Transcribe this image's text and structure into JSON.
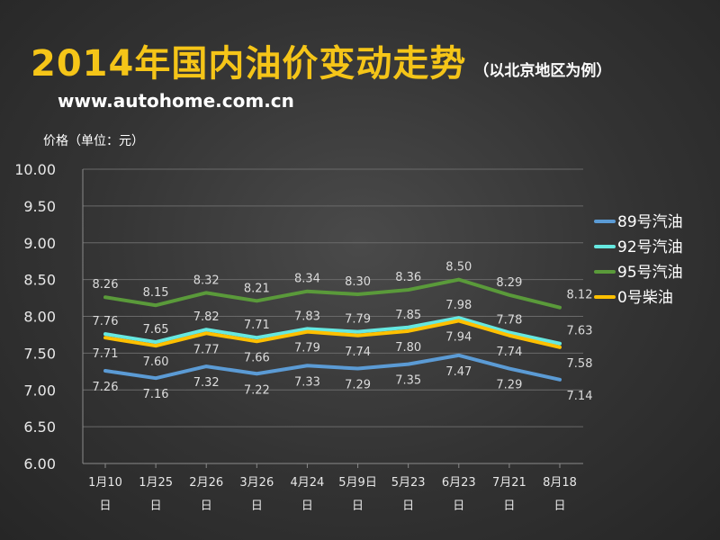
{
  "header": {
    "title": "2014年国内油价变动走势",
    "subtitle": "（以北京地区为例）",
    "website": "www.autohome.com.cn"
  },
  "chart_data": {
    "type": "line",
    "title": "2014年国内油价变动走势",
    "subtitle": "（以北京地区为例）",
    "ylabel": "价格（单位：元）",
    "xlabel": "",
    "ylim": [
      6.0,
      10.0
    ],
    "yticks": [
      "6.00",
      "6.50",
      "7.00",
      "7.50",
      "8.00",
      "8.50",
      "9.00",
      "9.50",
      "10.00"
    ],
    "categories": [
      [
        "1月10",
        "日"
      ],
      [
        "1月25",
        "日"
      ],
      [
        "2月26",
        "日"
      ],
      [
        "3月26",
        "日"
      ],
      [
        "4月24",
        "日"
      ],
      [
        "5月9日",
        "日"
      ],
      [
        "5月23",
        "日"
      ],
      [
        "6月23",
        "日"
      ],
      [
        "7月21",
        "日"
      ],
      [
        "8月18",
        "日"
      ]
    ],
    "legend_position": "right",
    "grid": "horizontal",
    "series": [
      {
        "name": "89号汽油",
        "color": "#5b9bd5",
        "values": [
          7.26,
          7.16,
          7.32,
          7.22,
          7.33,
          7.29,
          7.35,
          7.47,
          7.29,
          7.14
        ],
        "label_pos": "below"
      },
      {
        "name": "92号汽油",
        "color": "#66e8e0",
        "values": [
          7.76,
          7.65,
          7.82,
          7.71,
          7.83,
          7.79,
          7.85,
          7.98,
          7.78,
          7.63
        ],
        "label_pos": "above"
      },
      {
        "name": "95号汽油",
        "color": "#5a9a3a",
        "values": [
          8.26,
          8.15,
          8.32,
          8.21,
          8.34,
          8.3,
          8.36,
          8.5,
          8.29,
          8.12
        ],
        "label_pos": "above"
      },
      {
        "name": "0号柴油",
        "color": "#ffc000",
        "values": [
          7.71,
          7.6,
          7.77,
          7.66,
          7.79,
          7.74,
          7.8,
          7.94,
          7.74,
          7.58
        ],
        "label_pos": "below"
      }
    ]
  }
}
